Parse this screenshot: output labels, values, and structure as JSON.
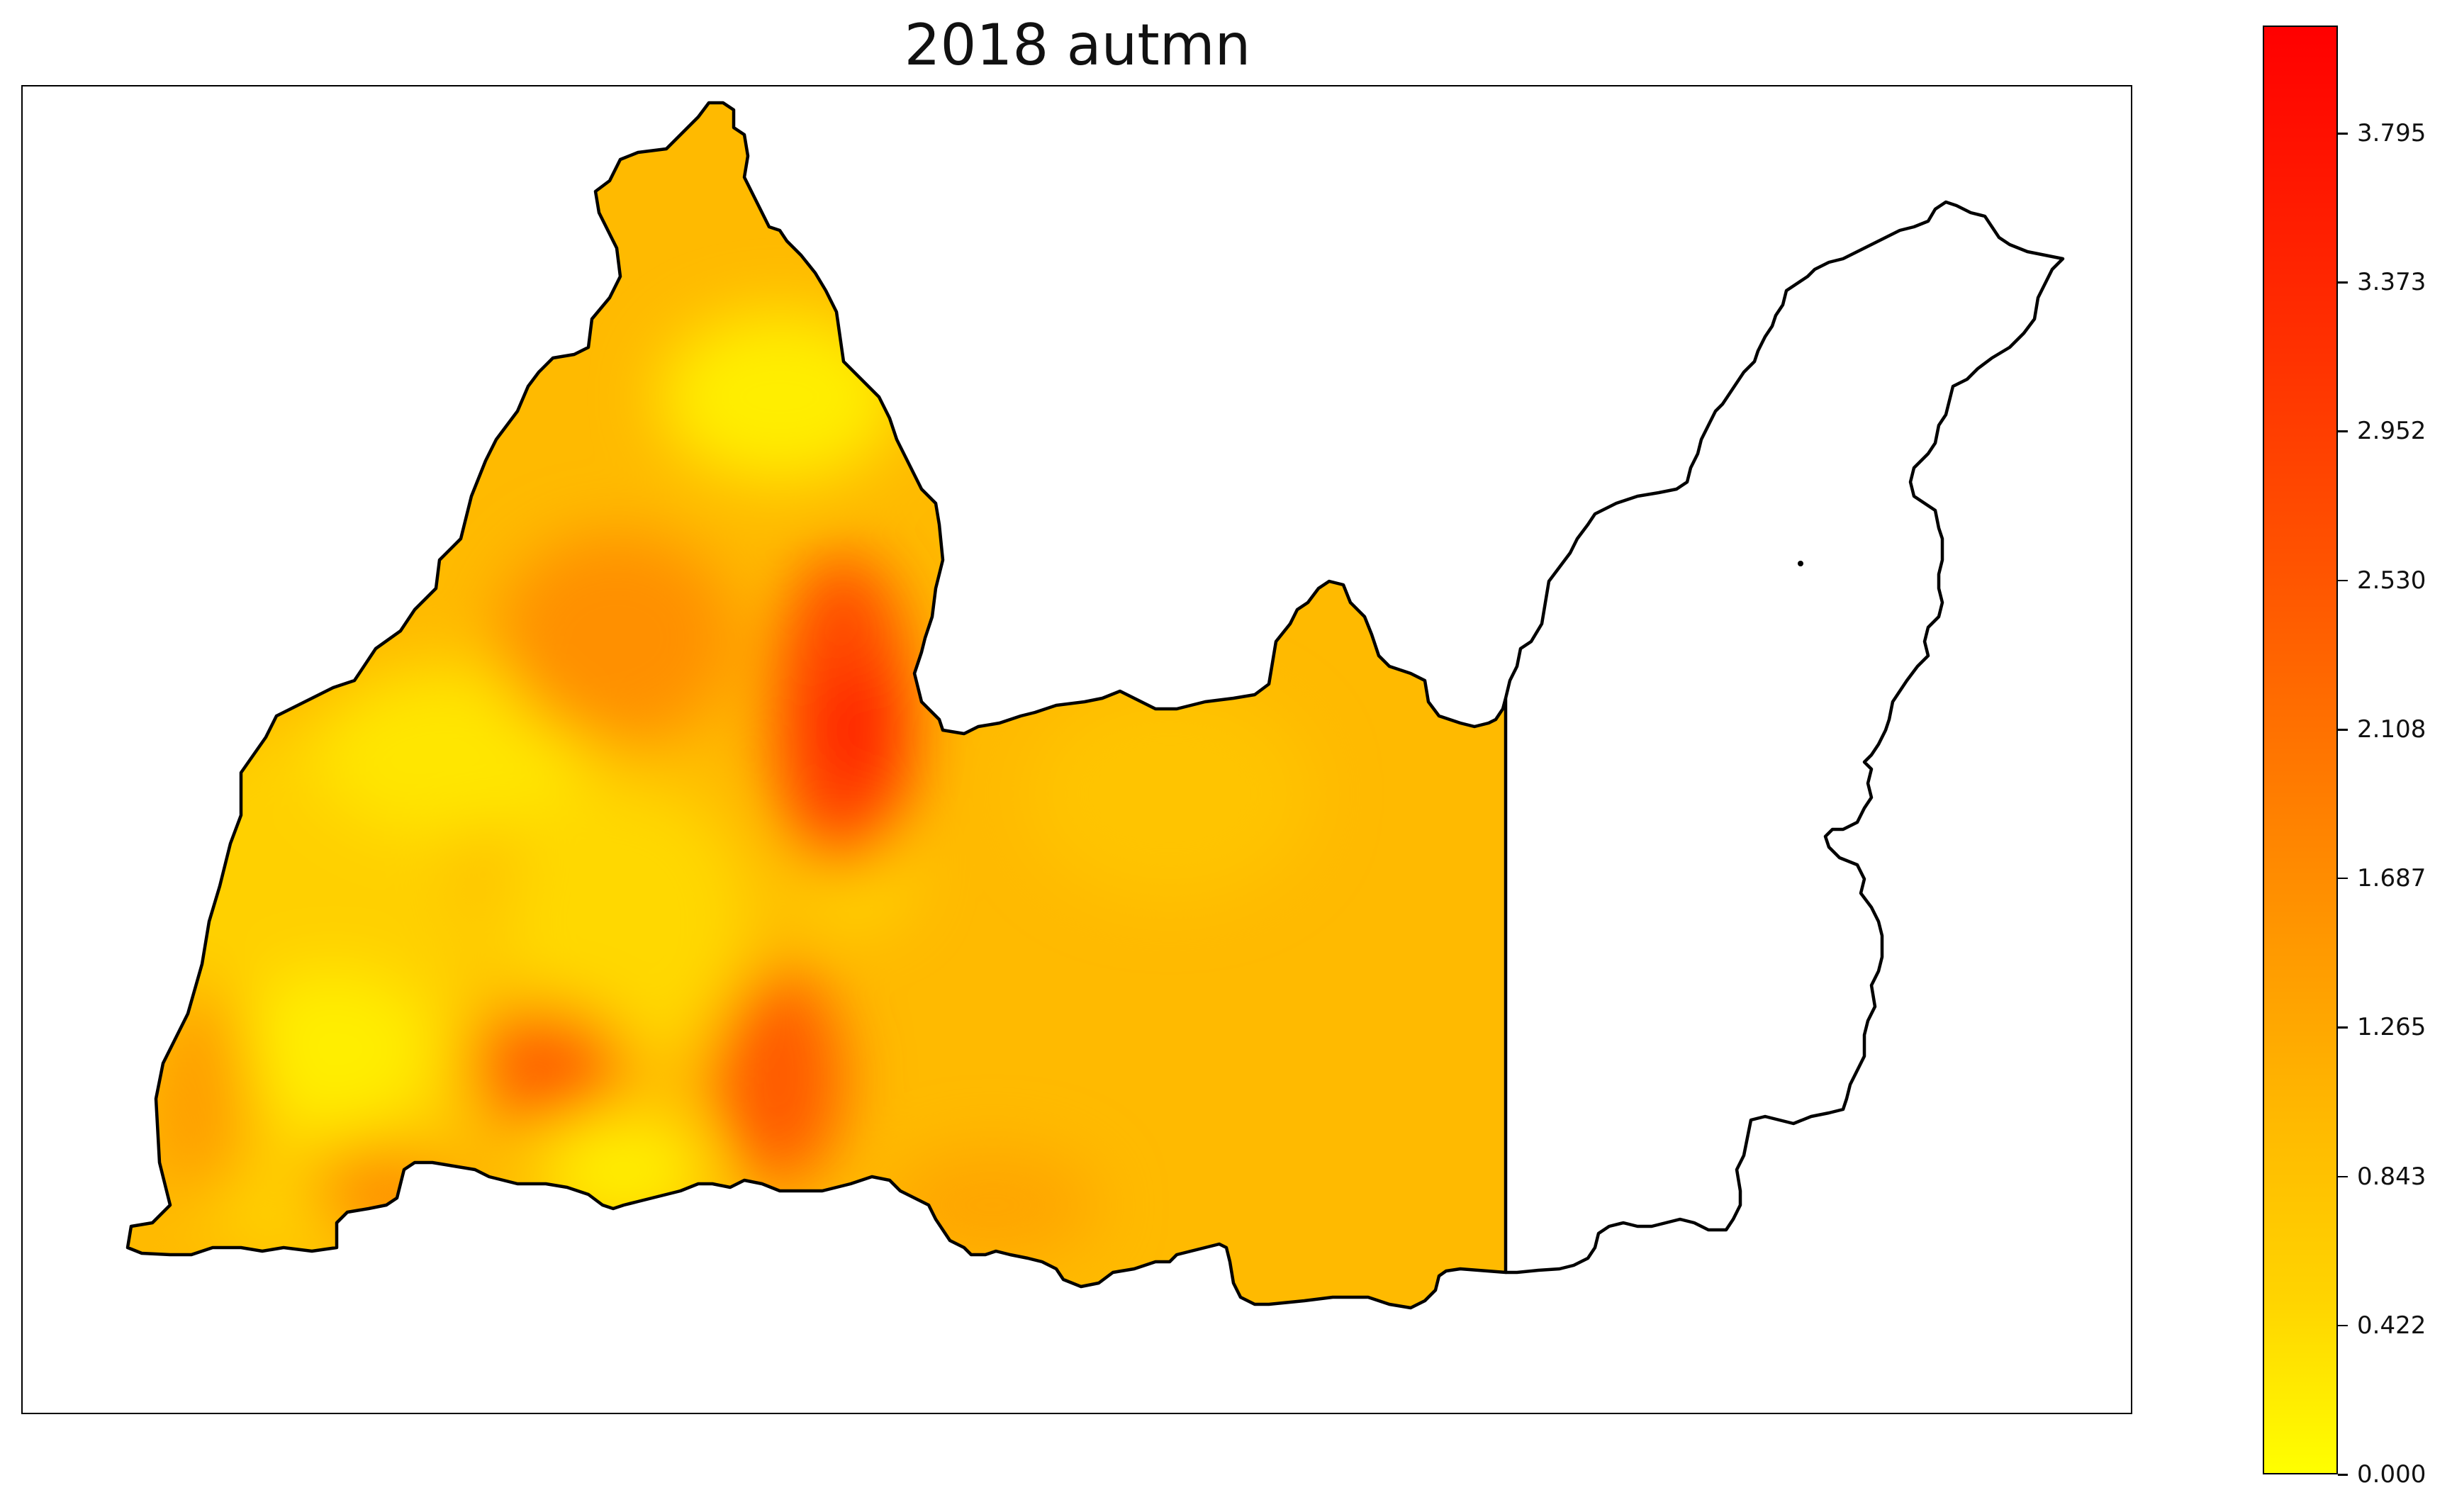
{
  "title": "2018 autmn",
  "colorbar": {
    "min": 0.0,
    "max": 4.1,
    "colors": [
      "#ffff00",
      "#ffd400",
      "#ffba00",
      "#ff9a00",
      "#ff7a00",
      "#ff5500",
      "#ff3000",
      "#ff0000"
    ],
    "ticks": [
      {
        "value": 0.0,
        "label": "0.000"
      },
      {
        "value": 0.422,
        "label": "0.422"
      },
      {
        "value": 0.843,
        "label": "0.843"
      },
      {
        "value": 1.265,
        "label": "1.265"
      },
      {
        "value": 1.687,
        "label": "1.687"
      },
      {
        "value": 2.108,
        "label": "2.108"
      },
      {
        "value": 2.53,
        "label": "2.530"
      },
      {
        "value": 2.952,
        "label": "2.952"
      },
      {
        "value": 3.373,
        "label": "3.373"
      },
      {
        "value": 3.795,
        "label": "3.795"
      }
    ]
  }
}
